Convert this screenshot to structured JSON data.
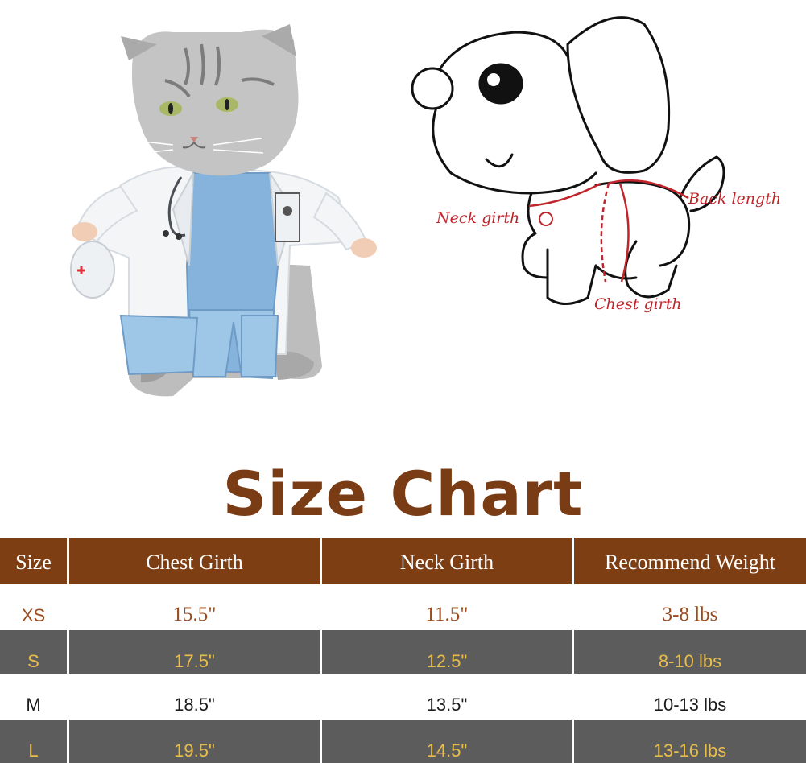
{
  "diagram": {
    "labels": {
      "neck_girth": "Neck  girth",
      "back_length": "Back length",
      "chest_girth": "Chest girth"
    }
  },
  "title": "Size Chart",
  "table": {
    "headers": [
      "Size",
      "Chest Girth",
      "Neck Girth",
      "Recommend Weight"
    ],
    "rows": [
      [
        "XS",
        "15.5\"",
        "11.5\"",
        "3-8 lbs"
      ],
      [
        "S",
        "17.5\"",
        "12.5\"",
        "8-10 lbs"
      ],
      [
        "M",
        "18.5\"",
        "13.5\"",
        "10-13 lbs"
      ],
      [
        "L",
        "19.5\"",
        "14.5\"",
        "13-16 lbs"
      ]
    ]
  },
  "colors": {
    "title": "#7a3c15",
    "header_bg": "#7d3e14",
    "gray_row_bg": "#5c5c5c",
    "gray_row_text": "#e9bd4a",
    "measure_line": "#c0252c"
  }
}
